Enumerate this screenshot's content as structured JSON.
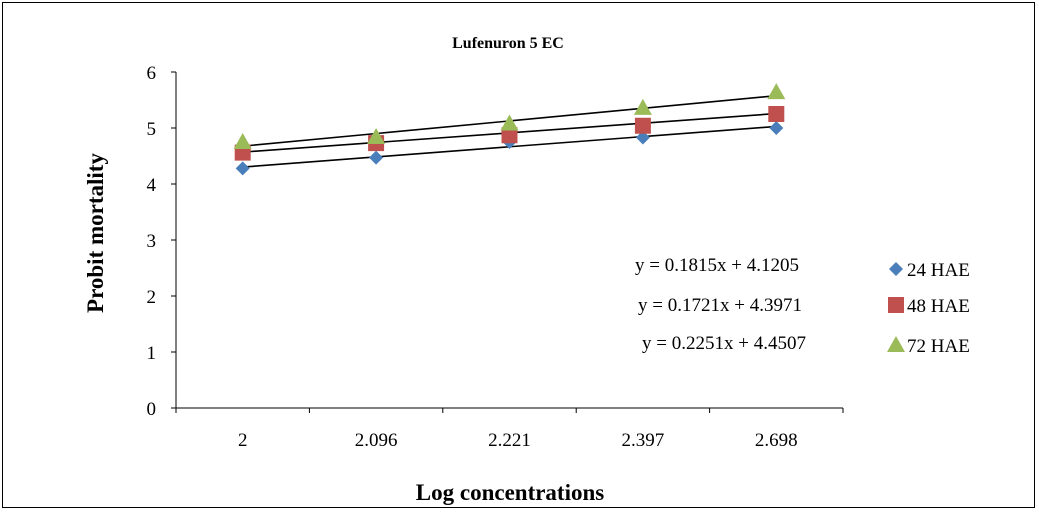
{
  "chart_data": {
    "type": "scatter",
    "title": "Lufenuron 5 EC",
    "xlabel": "Log concentrations",
    "ylabel": "Probit mortality",
    "categories": [
      "2",
      "2.096",
      "2.221",
      "2.397",
      "2.698"
    ],
    "ylim": [
      0,
      6
    ],
    "yticks": [
      0,
      1,
      2,
      3,
      4,
      5,
      6
    ],
    "grid": false,
    "legend_position": "right",
    "series": [
      {
        "name": "24 HAE",
        "marker": "diamond",
        "color": "#4a7ebb",
        "values": [
          4.28,
          4.47,
          4.75,
          4.83,
          5.0
        ]
      },
      {
        "name": "48 HAE",
        "marker": "square",
        "color": "#c0504d",
        "values": [
          4.56,
          4.73,
          4.87,
          5.04,
          5.25
        ]
      },
      {
        "name": "72 HAE",
        "marker": "triangle",
        "color": "#9bbb59",
        "values": [
          4.75,
          4.84,
          5.08,
          5.36,
          5.64
        ]
      }
    ],
    "trendlines": [
      {
        "slope": 0.1815,
        "intercept": 4.1205
      },
      {
        "slope": 0.1721,
        "intercept": 4.3971
      },
      {
        "slope": 0.2251,
        "intercept": 4.4507
      }
    ],
    "equations": [
      "y = 0.1815x + 4.1205",
      "y = 0.1721x + 4.3971",
      "y = 0.2251x + 4.4507"
    ]
  }
}
